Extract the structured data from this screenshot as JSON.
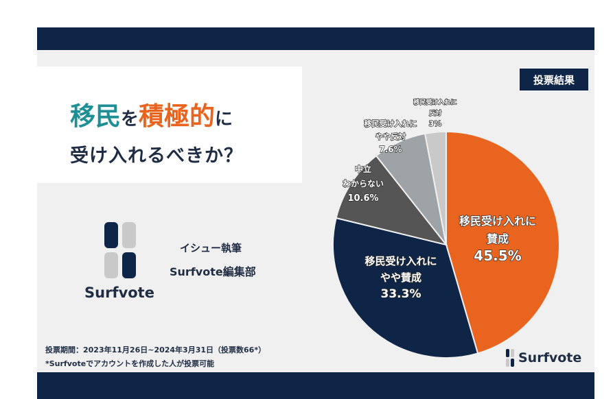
{
  "title": {
    "line1_part1": "移民",
    "line1_part2": "を",
    "line1_part3": "積極的",
    "line1_part4": "に",
    "line2": "受け入れるべきか？"
  },
  "author": {
    "line1": "イシュー執筆",
    "line2": "Surfvote編集部"
  },
  "brand": {
    "logo_text": "Surfvote",
    "footer_logo_text": "Surfvote"
  },
  "badge": "投票結果",
  "footer": {
    "period": "投票期間：2023年11月26日~2024年3月31日（投票数66*）",
    "note": "*Surfvoteでアカウントを作成した人が投票可能"
  },
  "colors": {
    "navy": "#0f2547",
    "orange": "#e9651f",
    "teal": "#1f8f96",
    "gray_dark": "#555555",
    "gray_light": "#9ea3a8",
    "gray_pale": "#c9c9c9"
  },
  "chart_data": {
    "type": "pie",
    "title": "",
    "slices": [
      {
        "label_lines": [
          "移民受け入れに",
          "賛成"
        ],
        "value_label": "45.5%",
        "value": 45.5,
        "color": "#e9651f"
      },
      {
        "label_lines": [
          "移民受け入れに",
          "やや賛成"
        ],
        "value_label": "33.3%",
        "value": 33.3,
        "color": "#0f2547"
      },
      {
        "label_lines": [
          "中立",
          "わからない"
        ],
        "value_label": "10.6%",
        "value": 10.6,
        "color": "#555555"
      },
      {
        "label_lines": [
          "移民受け入れに",
          "やや反対"
        ],
        "value_label": "7.6%",
        "value": 7.6,
        "color": "#9ea3a8"
      },
      {
        "label_lines": [
          "移民受け入れに",
          "反対"
        ],
        "value_label": "3%",
        "value": 3.0,
        "color": "#c9c9c9"
      }
    ]
  }
}
